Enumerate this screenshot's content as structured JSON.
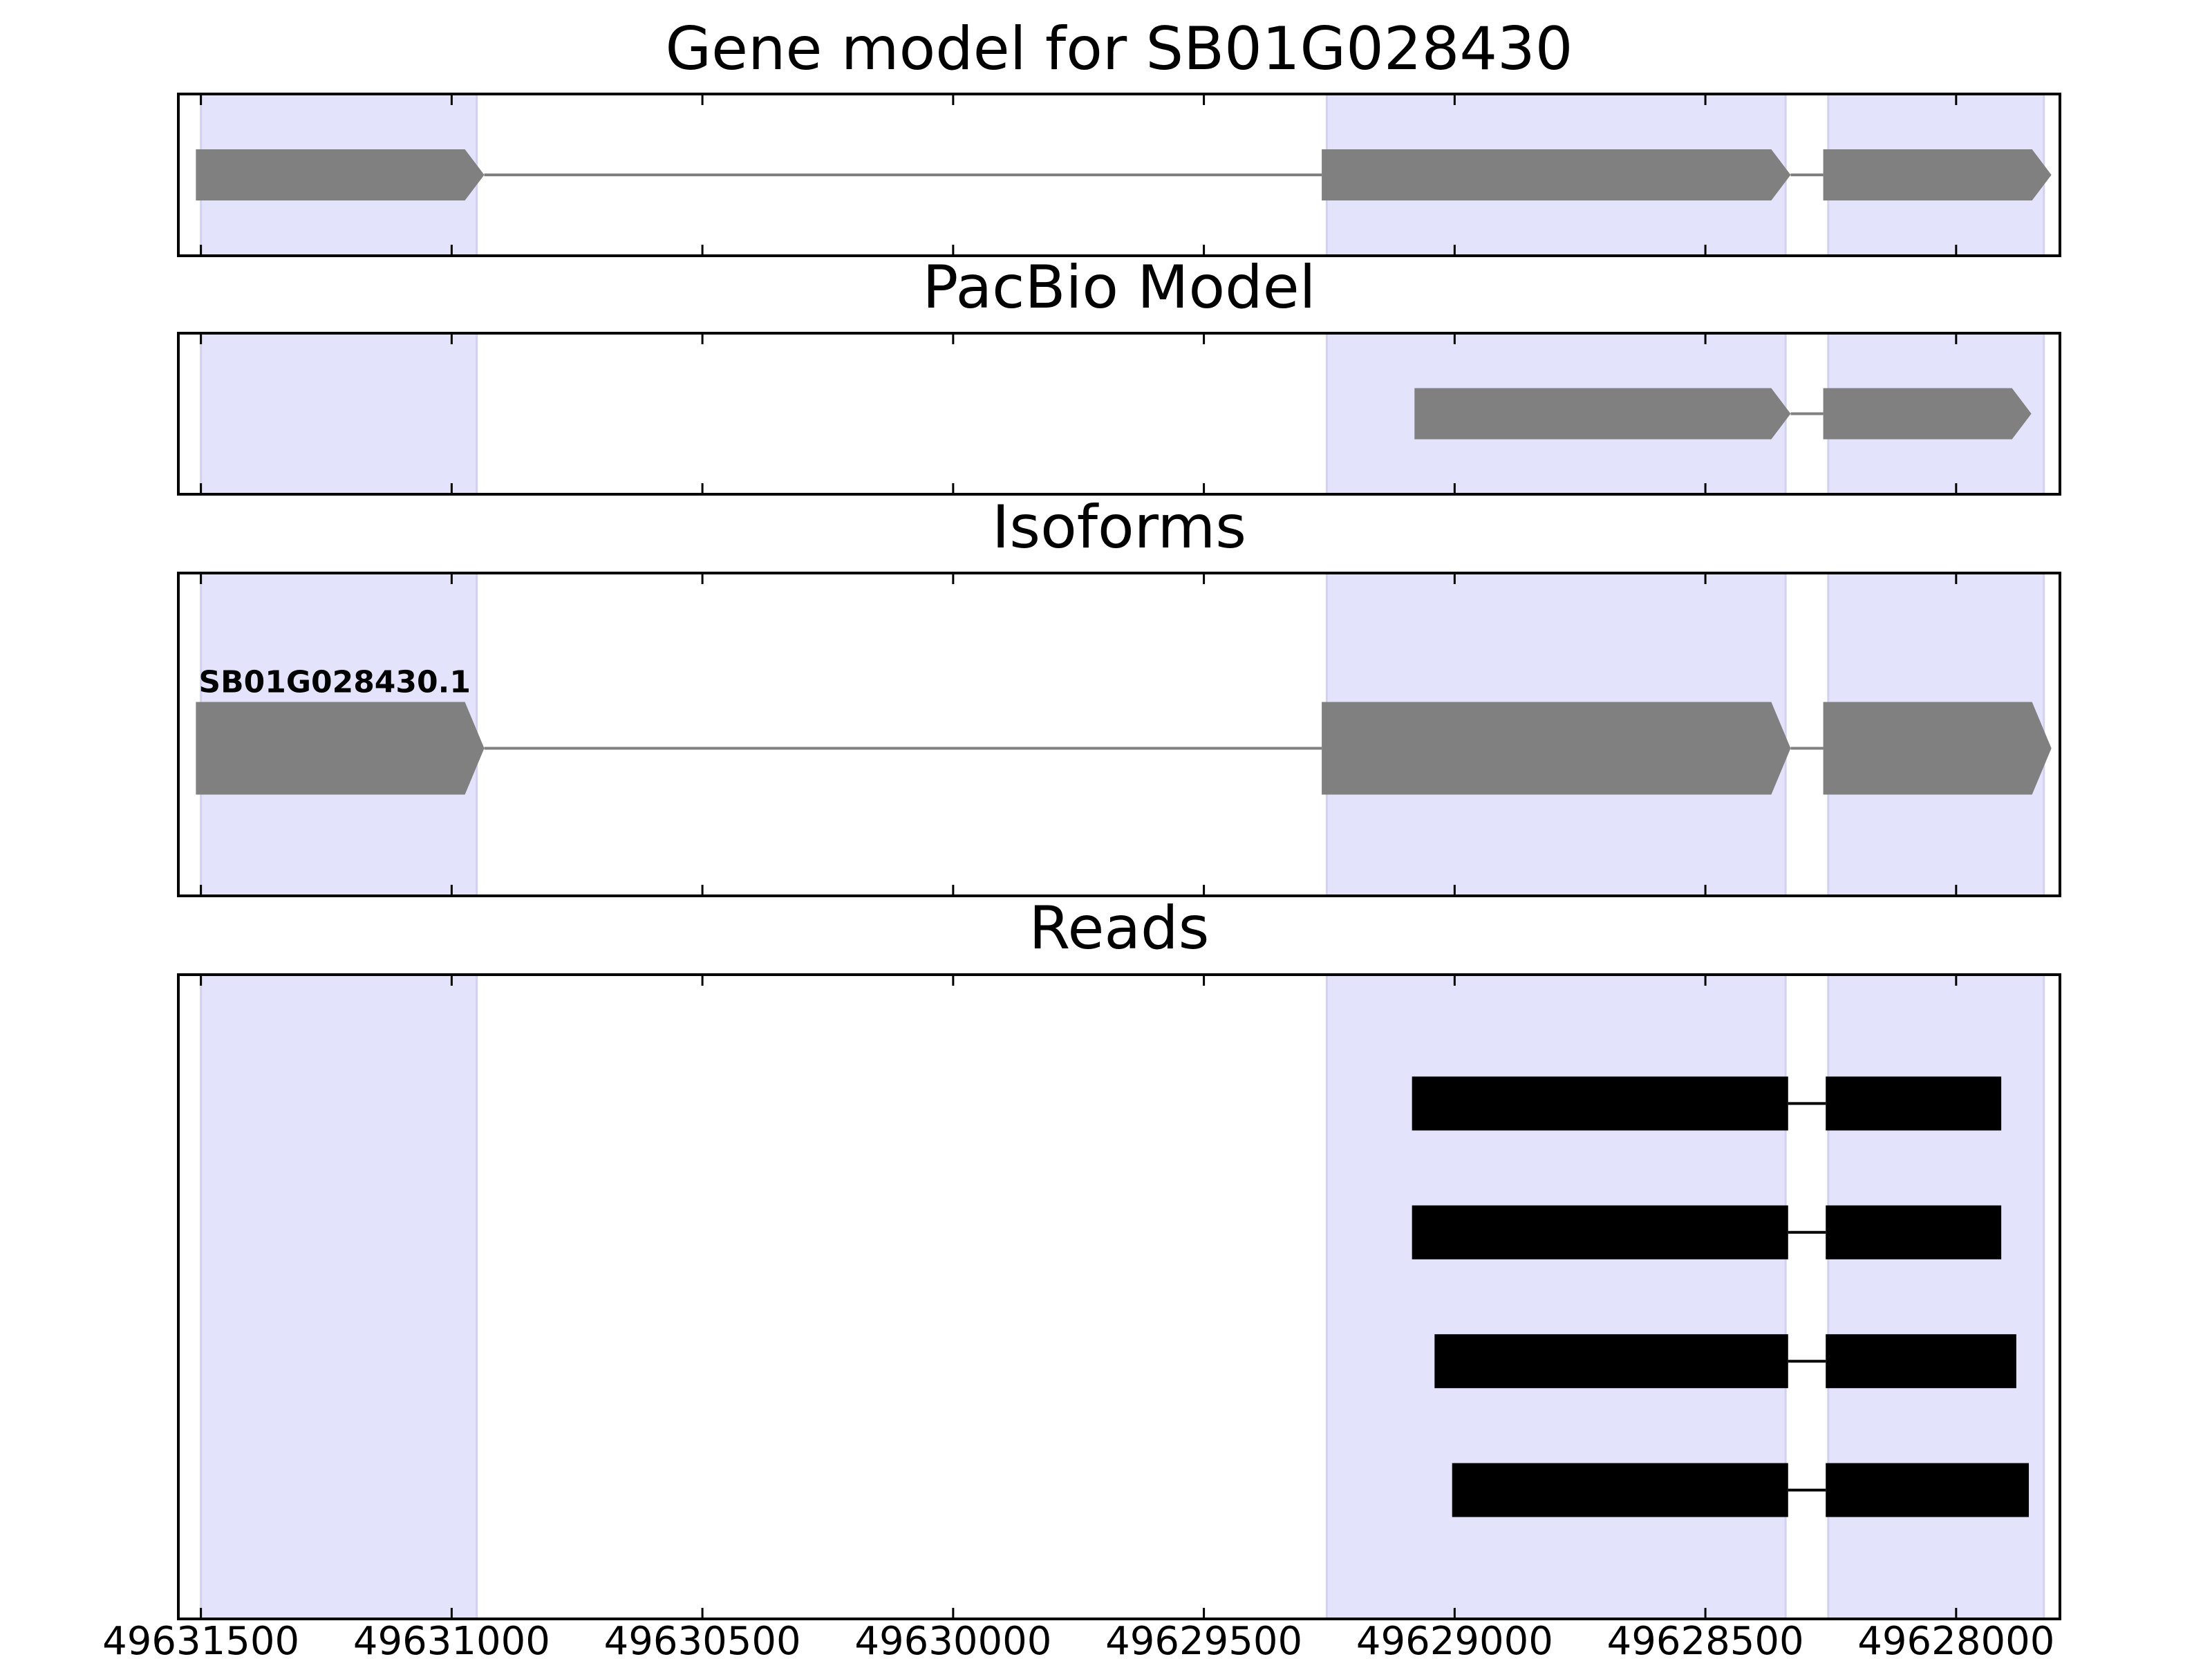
{
  "chart_data": [
    {
      "type": "gene-model",
      "title": "Gene model for SB01G028430",
      "color": "#808080",
      "region_color": "#e3e3fc",
      "xlim": [
        49631545,
        49627793
      ],
      "xticks": [
        49631500,
        49631000,
        49630500,
        49630000,
        49629500,
        49629000,
        49628500,
        49628000
      ],
      "regions": [
        [
          49631500,
          49630950
        ],
        [
          49629255,
          49628340
        ],
        [
          49628255,
          49627825
        ]
      ],
      "tracks": [
        {
          "exons": [
            [
              49631510,
              49630935
            ],
            [
              49629265,
              49628330
            ],
            [
              49628265,
              49627810
            ]
          ]
        }
      ]
    },
    {
      "type": "gene-model",
      "title": "PacBio Model",
      "color": "#808080",
      "region_color": "#e3e3fc",
      "xlim": [
        49631545,
        49627793
      ],
      "xticks": [
        49631500,
        49631000,
        49630500,
        49630000,
        49629500,
        49629000,
        49628500,
        49628000
      ],
      "regions": [
        [
          49631500,
          49630950
        ],
        [
          49629255,
          49628340
        ],
        [
          49628255,
          49627825
        ]
      ],
      "tracks": [
        {
          "exons": [
            [
              49629080,
              49628330
            ],
            [
              49628265,
              49627850
            ]
          ]
        }
      ]
    },
    {
      "type": "gene-model",
      "title": "Isoforms",
      "color": "#808080",
      "region_color": "#e3e3fc",
      "xlim": [
        49631545,
        49627793
      ],
      "xticks": [
        49631500,
        49631000,
        49630500,
        49630000,
        49629500,
        49629000,
        49628500,
        49628000
      ],
      "regions": [
        [
          49631500,
          49630950
        ],
        [
          49629255,
          49628340
        ],
        [
          49628255,
          49627825
        ]
      ],
      "tracks": [
        {
          "name": "SB01G028430.1",
          "exons": [
            [
              49631510,
              49630935
            ],
            [
              49629265,
              49628330
            ],
            [
              49628265,
              49627810
            ]
          ]
        }
      ]
    },
    {
      "type": "reads",
      "title": "Reads",
      "color": "#000000",
      "region_color": "#e3e3fc",
      "xlim": [
        49631545,
        49627793
      ],
      "xticks": [
        49631500,
        49631000,
        49630500,
        49630000,
        49629500,
        49629000,
        49628500,
        49628000
      ],
      "regions": [
        [
          49631500,
          49630950
        ],
        [
          49629255,
          49628340
        ],
        [
          49628255,
          49627825
        ]
      ],
      "tracks": [
        {
          "exons": [
            [
              49629085,
              49628335
            ],
            [
              49628260,
              49627910
            ]
          ]
        },
        {
          "exons": [
            [
              49629085,
              49628335
            ],
            [
              49628260,
              49627910
            ]
          ]
        },
        {
          "exons": [
            [
              49629040,
              49628335
            ],
            [
              49628260,
              49627880
            ]
          ]
        },
        {
          "exons": [
            [
              49629005,
              49628335
            ],
            [
              49628260,
              49627855
            ]
          ]
        }
      ]
    }
  ]
}
